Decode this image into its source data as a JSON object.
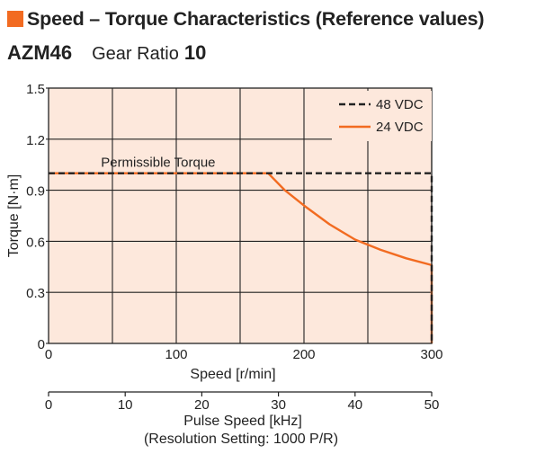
{
  "header": {
    "title": "Speed – Torque Characteristics (Reference values)",
    "model": "AZM46",
    "gear_ratio_label": "Gear Ratio",
    "gear_ratio_value": "10",
    "accent_color": "#f26b21"
  },
  "chart_data": {
    "type": "line",
    "xlabel": "Speed [r/min]",
    "ylabel": "Torque [N·m]",
    "xlim": [
      0,
      300
    ],
    "ylim": [
      0,
      1.5
    ],
    "x_ticks": [
      0,
      100,
      200,
      300
    ],
    "y_ticks": [
      0,
      0.3,
      0.6,
      0.9,
      1.2,
      1.5
    ],
    "y_tick_labels": [
      "0",
      "0.3",
      "0.6",
      "0.9",
      "1.2",
      "1.5"
    ],
    "grid": true,
    "background_color": "#fde8dc",
    "legend_position": "top-right",
    "annotation": "Permissible Torque",
    "series": [
      {
        "name": "48 VDC",
        "color": "#222222",
        "style": "dashed",
        "x": [
          0,
          300,
          300
        ],
        "y": [
          1.0,
          1.0,
          0
        ]
      },
      {
        "name": "24 VDC",
        "color": "#f26b21",
        "style": "solid",
        "x": [
          0,
          172,
          185,
          200,
          220,
          240,
          260,
          280,
          300,
          300
        ],
        "y": [
          1.0,
          1.0,
          0.9,
          0.81,
          0.7,
          0.61,
          0.55,
          0.5,
          0.46,
          0
        ]
      }
    ],
    "secondary_axis": {
      "label": "Pulse Speed [kHz]",
      "note": "(Resolution Setting: 1000 P/R)",
      "xlim": [
        0,
        50
      ],
      "ticks": [
        0,
        10,
        20,
        30,
        40,
        50
      ]
    }
  }
}
